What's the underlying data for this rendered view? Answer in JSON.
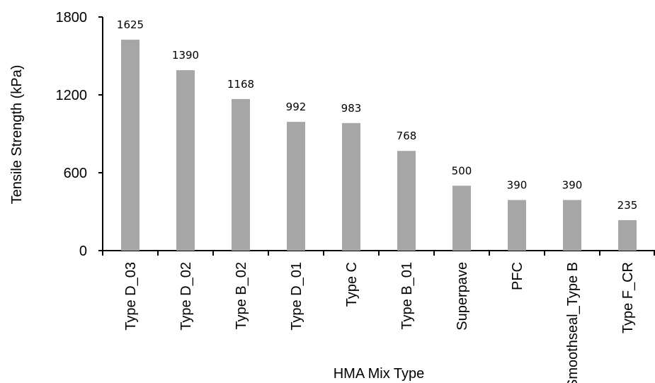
{
  "chart_data": {
    "type": "bar",
    "y_label": "Tensile Strength (kPa)",
    "x_label": "HMA Mix Type",
    "categories": [
      "Type D_03",
      "Type D_02",
      "Type B_02",
      "Type D_01",
      "Type C",
      "Type B_01",
      "Superpave",
      "PFC",
      "Smoothseal_Type B",
      "Type F_CR"
    ],
    "values": [
      1625,
      1390,
      1168,
      992,
      983,
      768,
      500,
      390,
      390,
      235
    ],
    "color": "#a6a6a6",
    "ylim": [
      0,
      1800
    ],
    "yticks": [
      0,
      600,
      1200,
      1800
    ],
    "grid": false
  }
}
